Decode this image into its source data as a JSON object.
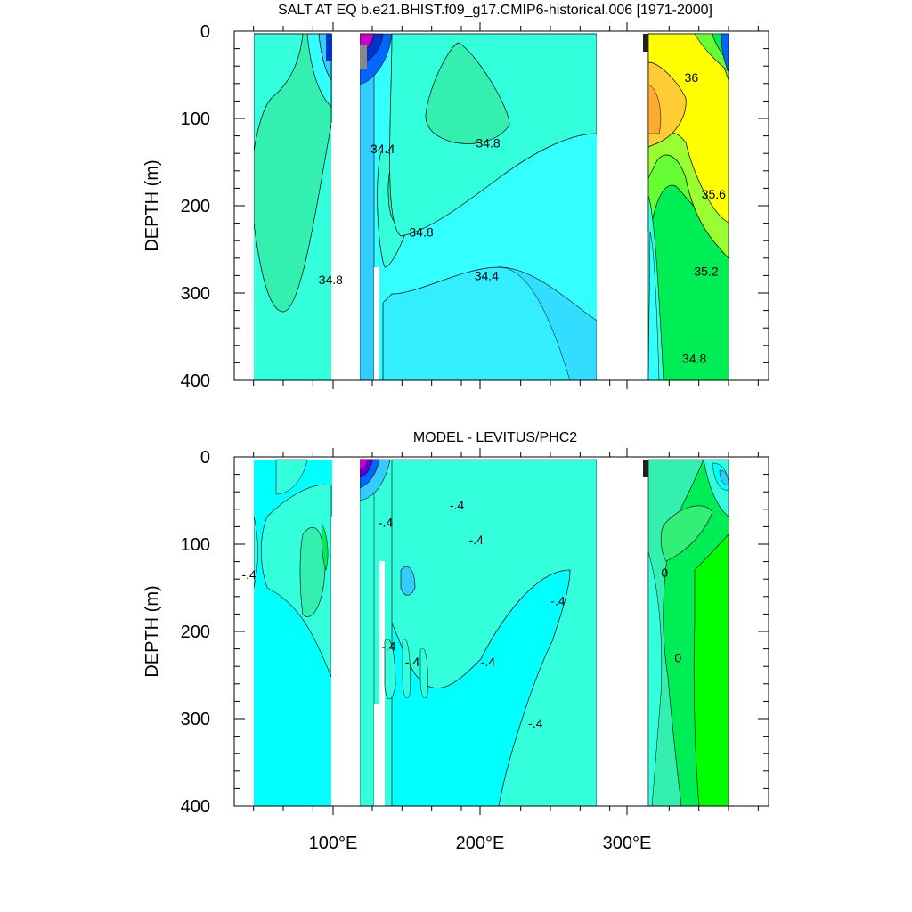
{
  "chart_data": [
    {
      "type": "heatmap",
      "title": "SALT AT EQ b.e21.BHIST.f09_g17.CMIP6-historical.006 [1971-2000]",
      "ylabel": "DEPTH (m)",
      "xlabel": "",
      "xlim": [
        27,
        387
      ],
      "ylim": [
        400,
        0
      ],
      "y_ticks": [
        0,
        100,
        200,
        300,
        400
      ],
      "y_tick_labels": [
        "0",
        "100",
        "200",
        "300",
        "400"
      ],
      "x_ticks": [
        100,
        200,
        300
      ],
      "x_tick_labels": [
        "",
        "",
        ""
      ],
      "background_color": "#33FFFF",
      "colors": {
        "deep_blue": "#0033CC",
        "blue": "#0066FF",
        "sky": "#33CCFF",
        "cyan": "#33FFFF",
        "aqua": "#33FFDD",
        "teal_green": "#33F0B0",
        "green": "#00EE55",
        "lime": "#66FF33",
        "yellow": "#FFFF00",
        "orange": "#FFCC33",
        "magenta": "#CC00CC",
        "grey": "#888888"
      },
      "contour_labels": [
        {
          "text": "34.8",
          "x": 92,
          "y": 290
        },
        {
          "text": "34.8",
          "x": 198,
          "y": 133
        },
        {
          "text": "34.4",
          "x": 127,
          "y": 140
        },
        {
          "text": "34.8",
          "x": 153,
          "y": 235
        },
        {
          "text": "34.4",
          "x": 197,
          "y": 285
        },
        {
          "text": "36",
          "x": 335,
          "y": 58
        },
        {
          "text": "35.6",
          "x": 350,
          "y": 192
        },
        {
          "text": "35.2",
          "x": 345,
          "y": 280
        },
        {
          "text": "34.8",
          "x": 337,
          "y": 380
        }
      ]
    },
    {
      "type": "heatmap",
      "title": "MODEL - LEVITUS/PHC2",
      "ylabel": "DEPTH (m)",
      "xlabel": "",
      "xlim": [
        27,
        387
      ],
      "ylim": [
        400,
        0
      ],
      "y_ticks": [
        0,
        100,
        200,
        300,
        400
      ],
      "y_tick_labels": [
        "0",
        "100",
        "200",
        "300",
        "400"
      ],
      "x_ticks": [
        100,
        200,
        300
      ],
      "x_tick_labels": [
        "100°E",
        "200°E",
        "300°E"
      ],
      "background_color": "#00FFFF",
      "colors": {
        "cyan": "#00FFFF",
        "aqua": "#33FFDD",
        "teal_green": "#33F0B0",
        "green": "#00EE55",
        "bright_green": "#00FF00",
        "sky": "#33CCFF",
        "purple": "#6600CC",
        "magenta": "#CC00CC"
      },
      "contour_labels": [
        {
          "text": "-.4",
          "x": 37,
          "y": 140
        },
        {
          "text": "-.4",
          "x": 129,
          "y": 80
        },
        {
          "text": "-.4",
          "x": 177,
          "y": 60
        },
        {
          "text": "-.4",
          "x": 190,
          "y": 100
        },
        {
          "text": "-.4",
          "x": 131,
          "y": 222
        },
        {
          "text": "-.4",
          "x": 147,
          "y": 240
        },
        {
          "text": "-.4",
          "x": 198,
          "y": 240
        },
        {
          "text": "-.4",
          "x": 245,
          "y": 170
        },
        {
          "text": "-.4",
          "x": 230,
          "y": 310
        },
        {
          "text": "0",
          "x": 317,
          "y": 138
        },
        {
          "text": "0",
          "x": 326,
          "y": 235
        }
      ]
    }
  ]
}
